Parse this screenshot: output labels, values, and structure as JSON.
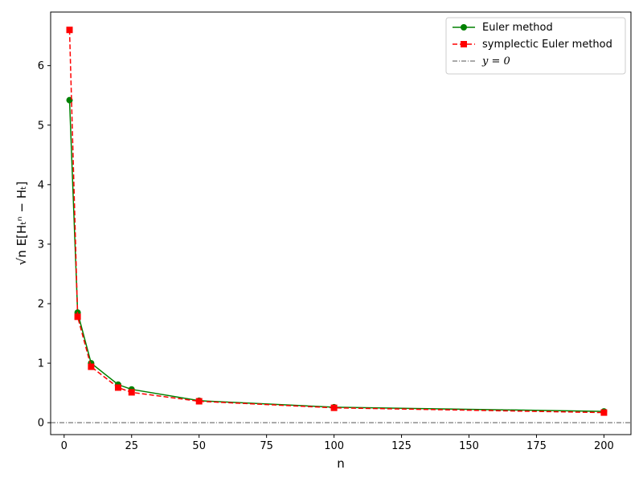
{
  "chart_data": {
    "type": "line",
    "xlabel": "n",
    "ylabel": "√n E[Hₜⁿ − Hₜ]",
    "xlim": [
      -5,
      210
    ],
    "ylim": [
      -0.2,
      6.9
    ],
    "xticks": [
      "0",
      "25",
      "50",
      "75",
      "100",
      "125",
      "150",
      "175",
      "200"
    ],
    "xtick_values": [
      0,
      25,
      50,
      75,
      100,
      125,
      150,
      175,
      200
    ],
    "yticks": [
      "0",
      "1",
      "2",
      "3",
      "4",
      "5",
      "6"
    ],
    "ytick_values": [
      0,
      1,
      2,
      3,
      4,
      5,
      6
    ],
    "x": [
      2,
      5,
      10,
      20,
      25,
      50,
      100,
      200
    ],
    "series": [
      {
        "name": "Euler method",
        "values": [
          5.42,
          1.85,
          1.0,
          0.64,
          0.56,
          0.37,
          0.26,
          0.19
        ],
        "color": "#008000",
        "linestyle": "solid",
        "marker": "circle"
      },
      {
        "name": "symplectic Euler method",
        "values": [
          6.6,
          1.78,
          0.94,
          0.59,
          0.51,
          0.36,
          0.25,
          0.17
        ],
        "color": "#ff0000",
        "linestyle": "dashed",
        "marker": "square"
      }
    ],
    "reference_line": {
      "label": "y = 0",
      "y": 0,
      "color": "#555555",
      "linestyle": "dashdot"
    },
    "legend_placement": "top-right",
    "grid": false
  }
}
